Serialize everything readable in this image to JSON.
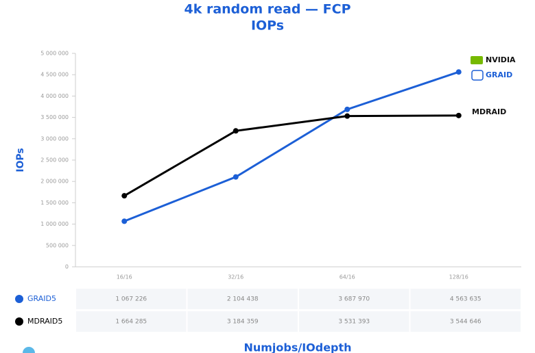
{
  "chart_data": {
    "type": "line",
    "title": "4k random read — FCP",
    "subtitle": "IOPs",
    "ylabel": "IOPs",
    "xlabel": "Numjobs/IOdepth",
    "categories": [
      "16/16",
      "32/16",
      "64/16",
      "128/16"
    ],
    "series": [
      {
        "name": "GRAID5",
        "color": "#1c5fd6",
        "values": [
          1067226,
          2104438,
          3687970,
          4563635
        ],
        "value_labels": [
          "1 067 226",
          "2 104 438",
          "3 687 970",
          "4 563 635"
        ]
      },
      {
        "name": "MDRAID5",
        "color": "#000000",
        "values": [
          1664285,
          3184359,
          3531393,
          3544646
        ],
        "value_labels": [
          "1 664 285",
          "3 184 359",
          "3 531 393",
          "3 544 646"
        ]
      }
    ],
    "ylim": [
      0,
      5000000
    ],
    "yticks": [
      0,
      {
        "value": 500000,
        "label": "500 000"
      },
      {
        "value": 1000000,
        "label": "1 000 000"
      },
      {
        "value": 1500000,
        "label": "1 500 000"
      },
      {
        "value": 2000000,
        "label": "2 000 000"
      },
      {
        "value": 2500000,
        "label": "2 500 000"
      },
      {
        "value": 3000000,
        "label": "3 000 000"
      },
      {
        "value": 3500000,
        "label": "3 500 000"
      },
      {
        "value": 4000000,
        "label": "4 000 000"
      },
      {
        "value": 4500000,
        "label": "4 500 000"
      },
      {
        "value": 5000000,
        "label": "5 000 000"
      }
    ],
    "grid": false,
    "annotations": [
      "NVIDIA",
      "GRAID",
      "MDRAID"
    ]
  }
}
